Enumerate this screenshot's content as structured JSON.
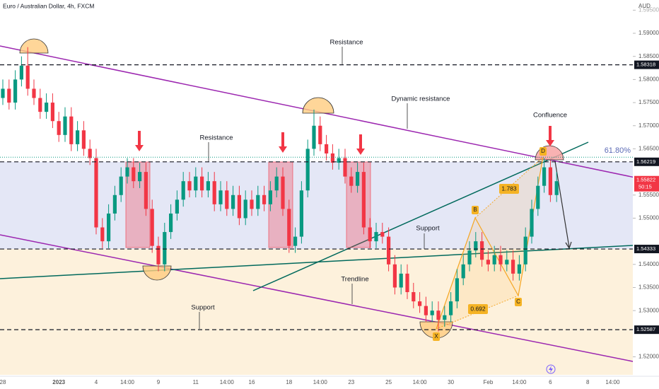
{
  "chart_data": {
    "type": "candlestick",
    "title": "Euro / Australian Dollar, 4h, FXCM",
    "currency": "AUD",
    "categories": [
      "28",
      null,
      null,
      null,
      null,
      null,
      null,
      null,
      null,
      "2023",
      null,
      null,
      null,
      null,
      null,
      "4",
      null,
      null,
      null,
      null,
      "14:00",
      null,
      null,
      null,
      null,
      "9",
      null,
      null,
      null,
      null,
      null,
      "11",
      null,
      null,
      null,
      null,
      "14:00",
      null,
      null,
      null,
      "16",
      null,
      null,
      null,
      null,
      null,
      "18",
      null,
      null,
      null,
      null,
      "14:00",
      null,
      null,
      null,
      null,
      "23",
      null,
      null,
      null,
      null,
      null,
      "25",
      null,
      null,
      null,
      null,
      "14:00",
      null,
      null,
      null,
      null,
      "30",
      null,
      null,
      null,
      null,
      null,
      "Feb",
      null,
      null,
      null,
      null,
      "14:00",
      null,
      null,
      null,
      null,
      "6",
      null,
      null,
      null,
      null,
      null,
      "8",
      null,
      null,
      null,
      "14:00",
      null
    ],
    "open": [
      1.576,
      1.578,
      1.575,
      1.58,
      1.583,
      1.578,
      1.576,
      1.573,
      1.575,
      1.571,
      1.568,
      1.572,
      1.566,
      1.569,
      1.565,
      1.563,
      1.548,
      1.545,
      1.551,
      1.555,
      1.559,
      1.561,
      1.558,
      1.56,
      1.552,
      1.544,
      1.54,
      1.547,
      1.551,
      1.554,
      1.558,
      1.556,
      1.559,
      1.556,
      1.558,
      1.553,
      1.556,
      1.552,
      1.555,
      1.55,
      1.554,
      1.552,
      1.555,
      1.553,
      1.556,
      1.559,
      1.552,
      1.544,
      1.546,
      1.556,
      1.565,
      1.57,
      1.566,
      1.564,
      1.562,
      1.563,
      1.559,
      1.557,
      1.56,
      1.548,
      1.545,
      1.547,
      1.546,
      1.54,
      1.535,
      1.538,
      1.534,
      1.532,
      1.531,
      1.529,
      1.53,
      1.528,
      1.529,
      1.532,
      1.537,
      1.54,
      1.543,
      1.545,
      1.541,
      1.54,
      1.542,
      1.54,
      1.541,
      1.538,
      1.54,
      1.546,
      1.552,
      1.557,
      1.561,
      1.555,
      null,
      null,
      null,
      null,
      null,
      null,
      null,
      null,
      null,
      null
    ],
    "high": [
      1.58,
      1.58,
      1.582,
      1.585,
      1.587,
      1.58,
      1.578,
      1.577,
      1.577,
      1.573,
      1.574,
      1.574,
      1.571,
      1.571,
      1.567,
      1.565,
      1.55,
      1.553,
      1.557,
      1.561,
      1.563,
      1.563,
      1.562,
      1.562,
      1.554,
      1.546,
      1.549,
      1.553,
      1.556,
      1.56,
      1.56,
      1.561,
      1.561,
      1.56,
      1.56,
      1.558,
      1.558,
      1.557,
      1.557,
      1.556,
      1.556,
      1.557,
      1.557,
      1.558,
      1.561,
      1.561,
      1.554,
      1.548,
      1.558,
      1.567,
      1.5735,
      1.572,
      1.568,
      1.566,
      1.565,
      1.565,
      1.561,
      1.562,
      1.562,
      1.55,
      1.549,
      1.549,
      1.548,
      1.542,
      1.54,
      1.54,
      1.536,
      1.534,
      1.533,
      1.532,
      1.532,
      1.531,
      1.534,
      1.539,
      1.542,
      1.545,
      1.547,
      1.547,
      1.543,
      1.544,
      1.544,
      1.543,
      1.543,
      1.542,
      1.548,
      1.554,
      1.559,
      1.563,
      1.5625,
      1.56,
      null,
      null,
      null,
      null,
      null,
      null,
      null,
      null,
      null,
      null
    ],
    "low": [
      1.5745,
      1.5735,
      1.5735,
      1.5785,
      1.5765,
      1.5745,
      1.5715,
      1.5715,
      1.5695,
      1.5665,
      1.5665,
      1.5645,
      1.5645,
      1.5635,
      1.5615,
      1.5465,
      1.5435,
      1.5435,
      1.5495,
      1.5535,
      1.5575,
      1.5565,
      1.5565,
      1.5505,
      1.5425,
      1.5385,
      1.5385,
      1.5455,
      1.5495,
      1.5525,
      1.5545,
      1.5545,
      1.5545,
      1.5545,
      1.5515,
      1.5515,
      1.5505,
      1.5505,
      1.5485,
      1.5485,
      1.5505,
      1.5505,
      1.5515,
      1.5515,
      1.5545,
      1.5505,
      1.5425,
      1.5425,
      1.5445,
      1.5545,
      1.5635,
      1.5645,
      1.5625,
      1.5605,
      1.5605,
      1.5575,
      1.5555,
      1.5555,
      1.5465,
      1.5435,
      1.5435,
      1.5445,
      1.5385,
      1.5335,
      1.5335,
      1.5325,
      1.5305,
      1.5295,
      1.5275,
      1.5275,
      1.5255,
      1.5265,
      1.5275,
      1.5305,
      1.5355,
      1.5385,
      1.5415,
      1.5395,
      1.5385,
      1.5385,
      1.5385,
      1.5385,
      1.5365,
      1.5365,
      1.5385,
      1.5445,
      1.5505,
      1.5555,
      1.5535,
      1.5535,
      null,
      null,
      null,
      null,
      null,
      null,
      null,
      null,
      null,
      null
    ],
    "close": [
      1.578,
      1.575,
      1.58,
      1.583,
      1.578,
      1.576,
      1.573,
      1.575,
      1.571,
      1.568,
      1.572,
      1.566,
      1.569,
      1.565,
      1.563,
      1.548,
      1.545,
      1.551,
      1.555,
      1.559,
      1.561,
      1.558,
      1.56,
      1.552,
      1.544,
      1.54,
      1.547,
      1.551,
      1.554,
      1.558,
      1.556,
      1.559,
      1.556,
      1.558,
      1.553,
      1.556,
      1.552,
      1.555,
      1.55,
      1.554,
      1.552,
      1.555,
      1.553,
      1.556,
      1.559,
      1.552,
      1.544,
      1.546,
      1.556,
      1.565,
      1.57,
      1.566,
      1.564,
      1.562,
      1.563,
      1.559,
      1.557,
      1.56,
      1.548,
      1.545,
      1.547,
      1.546,
      1.54,
      1.535,
      1.538,
      1.534,
      1.532,
      1.531,
      1.529,
      1.53,
      1.528,
      1.529,
      1.532,
      1.537,
      1.54,
      1.543,
      1.545,
      1.541,
      1.54,
      1.542,
      1.54,
      1.541,
      1.538,
      1.54,
      1.546,
      1.552,
      1.557,
      1.561,
      1.555,
      1.558,
      null,
      null,
      null,
      null,
      null,
      null,
      null,
      null,
      null,
      null
    ],
    "up_color": "#089981",
    "down_color": "#f23645",
    "ylim": [
      1.5161,
      1.5972
    ],
    "yticks": [
      {
        "value": 1.595,
        "label": "1.59500"
      },
      {
        "value": 1.59,
        "label": "1.59000"
      },
      {
        "value": 1.585,
        "label": "1.58500"
      },
      {
        "value": 1.58,
        "label": "1.58000"
      },
      {
        "value": 1.575,
        "label": "1.57500"
      },
      {
        "value": 1.57,
        "label": "1.57000"
      },
      {
        "value": 1.565,
        "label": "1.56500"
      },
      {
        "value": 1.555,
        "label": "1.55500"
      },
      {
        "value": 1.55,
        "label": "1.55000"
      },
      {
        "value": 1.54,
        "label": "1.54000"
      },
      {
        "value": 1.535,
        "label": "1.53500"
      },
      {
        "value": 1.53,
        "label": "1.53000"
      },
      {
        "value": 1.52,
        "label": "1.52000"
      }
    ],
    "levels": [
      1.58318,
      1.56219,
      1.54333,
      1.52587
    ],
    "zone": [
      1.56219,
      1.54333
    ],
    "current_price": 1.55822,
    "countdown": "50:15",
    "fib_level": 1.5632,
    "fib_label": "61.80%",
    "annotations": [
      "Resistance",
      "Dynamic resistance",
      "Confluence",
      "Resistance",
      "Support",
      "Trendline",
      "Support"
    ],
    "pattern_points": [
      "X",
      "B",
      "C",
      "D"
    ],
    "pattern_ratios": [
      "1.783",
      "0.692"
    ]
  }
}
